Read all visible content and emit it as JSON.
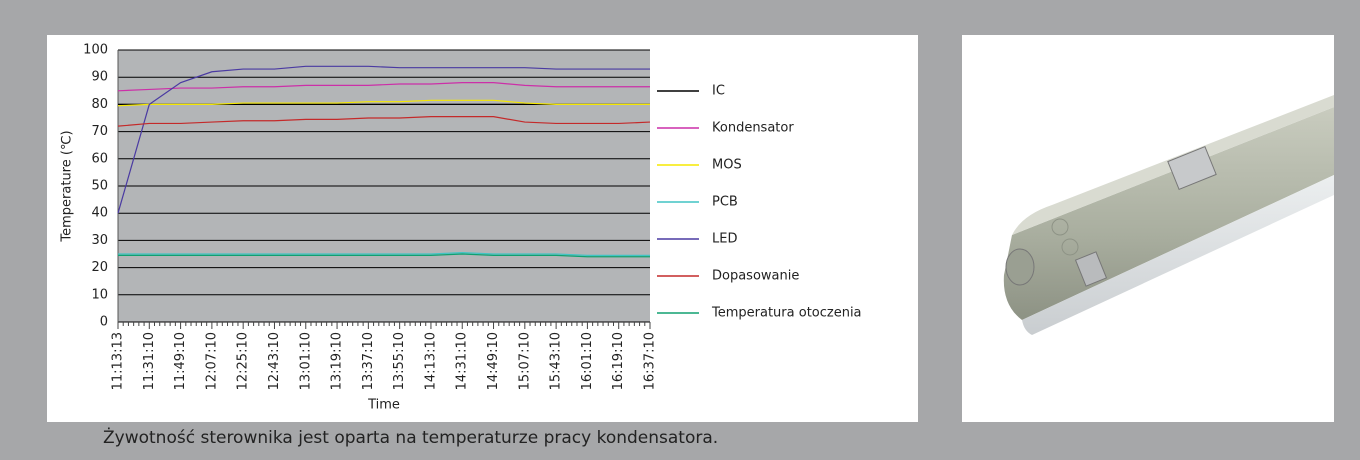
{
  "chart_data": {
    "type": "line",
    "ylabel": "Temperature (℃)",
    "xlabel": "Time",
    "categories": [
      "11:13:13",
      "11:31:10",
      "11:49:10",
      "12:07:10",
      "12:25:10",
      "12:43:10",
      "13:01:10",
      "13:19:10",
      "13:37:10",
      "13:55:10",
      "14:13:10",
      "14:31:10",
      "14:49:10",
      "15:07:10",
      "15:43:10",
      "16:01:10",
      "16:19:10",
      "16:37:10"
    ],
    "ylim": [
      0,
      100
    ],
    "yticks": [
      0,
      10,
      20,
      30,
      40,
      50,
      60,
      70,
      80,
      90,
      100
    ],
    "grid": true,
    "series": [
      {
        "name": "IC",
        "color": "#000000",
        "values": [
          80,
          80,
          80,
          80,
          80,
          80,
          80,
          80,
          80,
          80,
          80,
          80,
          80,
          80,
          80,
          80,
          80,
          80
        ]
      },
      {
        "name": "Kondensator",
        "color": "#cc2fa8",
        "values": [
          85,
          85.5,
          86,
          86,
          86.5,
          86.5,
          87,
          87,
          87,
          87.5,
          87.5,
          88,
          88,
          87,
          86.5,
          86.5,
          86.5,
          86.5
        ]
      },
      {
        "name": "MOS",
        "color": "#f5e800",
        "values": [
          79.5,
          80,
          80,
          80,
          80.5,
          80.5,
          80.5,
          80.5,
          81,
          81,
          81.5,
          81.5,
          81.5,
          80.5,
          80,
          80,
          80,
          80
        ]
      },
      {
        "name": "PCB",
        "color": "#40c4c4",
        "values": [
          25,
          25,
          25,
          25,
          25,
          25,
          25,
          25,
          25,
          25,
          25,
          25.5,
          25,
          25,
          25,
          24.5,
          24.5,
          24.5
        ]
      },
      {
        "name": "LED",
        "color": "#4a3aa2",
        "values": [
          40,
          80,
          88,
          92,
          93,
          93,
          94,
          94,
          94,
          93.5,
          93.5,
          93.5,
          93.5,
          93.5,
          93,
          93,
          93,
          93
        ]
      },
      {
        "name": "Dopasowanie",
        "color": "#c42a2a",
        "values": [
          72,
          73,
          73,
          73.5,
          74,
          74,
          74.5,
          74.5,
          75,
          75,
          75.5,
          75.5,
          75.5,
          73.5,
          73,
          73,
          73,
          73.5
        ]
      },
      {
        "name": "Temperatura otoczenia",
        "color": "#10a070",
        "values": [
          24.5,
          24.5,
          24.5,
          24.5,
          24.5,
          24.5,
          24.5,
          24.5,
          24.5,
          24.5,
          24.5,
          25,
          24.5,
          24.5,
          24.5,
          24,
          24,
          24
        ]
      }
    ]
  },
  "caption": "Żywotność sterownika jest oparta na temperaturze pracy kondensatora."
}
